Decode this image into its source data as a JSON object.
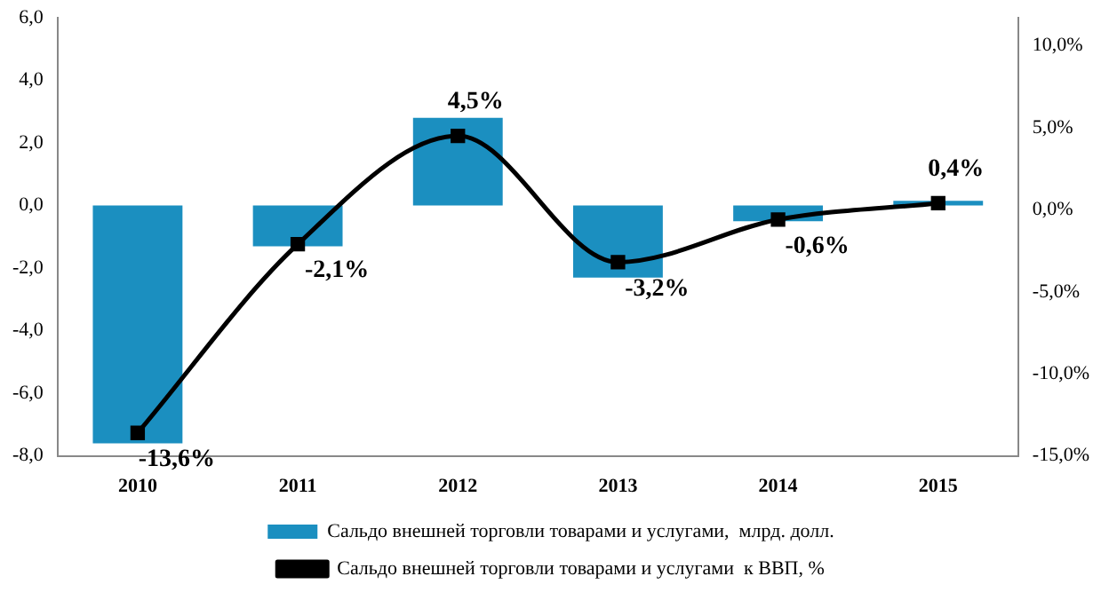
{
  "chart_data": {
    "type": "bar",
    "categories": [
      "2010",
      "2011",
      "2012",
      "2013",
      "2014",
      "2015"
    ],
    "series": [
      {
        "name": "Сальдо внешней торговли товарами и услугами,  млрд. долл.",
        "color": "#1b8fc0",
        "values": [
          -7.6,
          -1.3,
          2.8,
          -2.3,
          -0.5,
          0.15
        ]
      },
      {
        "type": "line",
        "axis": "y2",
        "name": "Сальдо внешней торговли товарами и услугами  к ВВП, %",
        "color": "#000000",
        "marker": "square",
        "values": [
          -13.6,
          -2.1,
          4.5,
          -3.2,
          -0.6,
          0.4
        ],
        "value_labels": [
          "-13,6%",
          "-2,1%",
          "4,5%",
          "-3,2%",
          "-0,6%",
          "0,4%"
        ]
      }
    ],
    "ylim": [
      -8,
      6
    ],
    "yticks": [
      {
        "value": -8,
        "label": "-8,0"
      },
      {
        "value": -6,
        "label": "-6,0"
      },
      {
        "value": -4,
        "label": "-4,0"
      },
      {
        "value": -2,
        "label": "-2,0"
      },
      {
        "value": 0,
        "label": "0,0"
      },
      {
        "value": 2,
        "label": "2,0"
      },
      {
        "value": 4,
        "label": "4,0"
      },
      {
        "value": 6,
        "label": "6,0"
      }
    ],
    "y2lim": [
      -15,
      11.7
    ],
    "y2ticks": [
      {
        "value": -15,
        "label": "-15,0%"
      },
      {
        "value": -10,
        "label": "-10,0%"
      },
      {
        "value": -5,
        "label": "-5,0%"
      },
      {
        "value": 0,
        "label": "0,0%"
      },
      {
        "value": 5,
        "label": "5,0%"
      },
      {
        "value": 10,
        "label": "10,0%"
      }
    ],
    "grid": false,
    "legend": "bottom"
  }
}
